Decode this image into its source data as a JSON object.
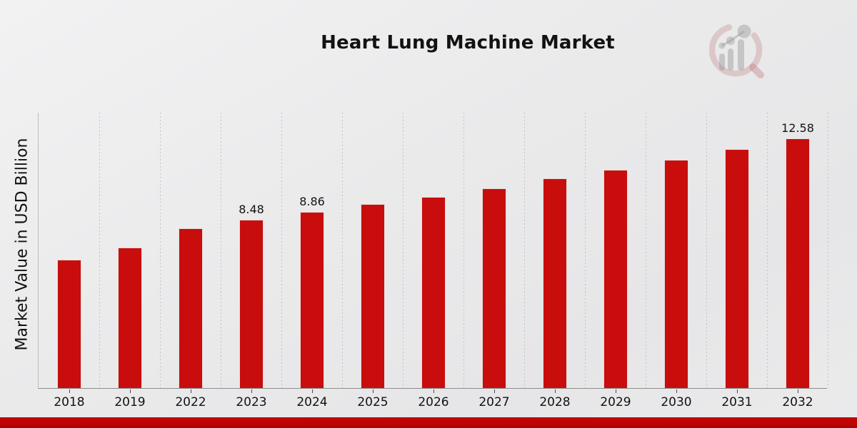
{
  "header": {
    "title": "Heart Lung Machine Market"
  },
  "axes": {
    "y_label": "Market Value in USD Billion"
  },
  "colors": {
    "bar": "#c90d0d",
    "footer_stripe": "#bd0303",
    "background": "#eaeaeb",
    "grid": "#c3c3c3",
    "text": "#121212"
  },
  "logo": {
    "name": "market-research-magnifier-watermark"
  },
  "chart_data": {
    "type": "bar",
    "title": "Heart Lung Machine Market",
    "xlabel": "",
    "ylabel": "Market Value in USD Billion",
    "categories": [
      "2018",
      "2019",
      "2022",
      "2023",
      "2024",
      "2025",
      "2026",
      "2027",
      "2028",
      "2029",
      "2030",
      "2031",
      "2032"
    ],
    "values": [
      6.48,
      7.08,
      8.06,
      8.48,
      8.86,
      9.25,
      9.62,
      10.06,
      10.55,
      11.0,
      11.5,
      12.02,
      12.58
    ],
    "value_labels": [
      "",
      "",
      "",
      "8.48",
      "8.86",
      "",
      "",
      "",
      "",
      "",
      "",
      "",
      "12.58"
    ],
    "ylim": [
      0,
      13.9
    ],
    "grid": "vertical-dashed",
    "legend": "none",
    "bar_color": "#c90d0d"
  }
}
